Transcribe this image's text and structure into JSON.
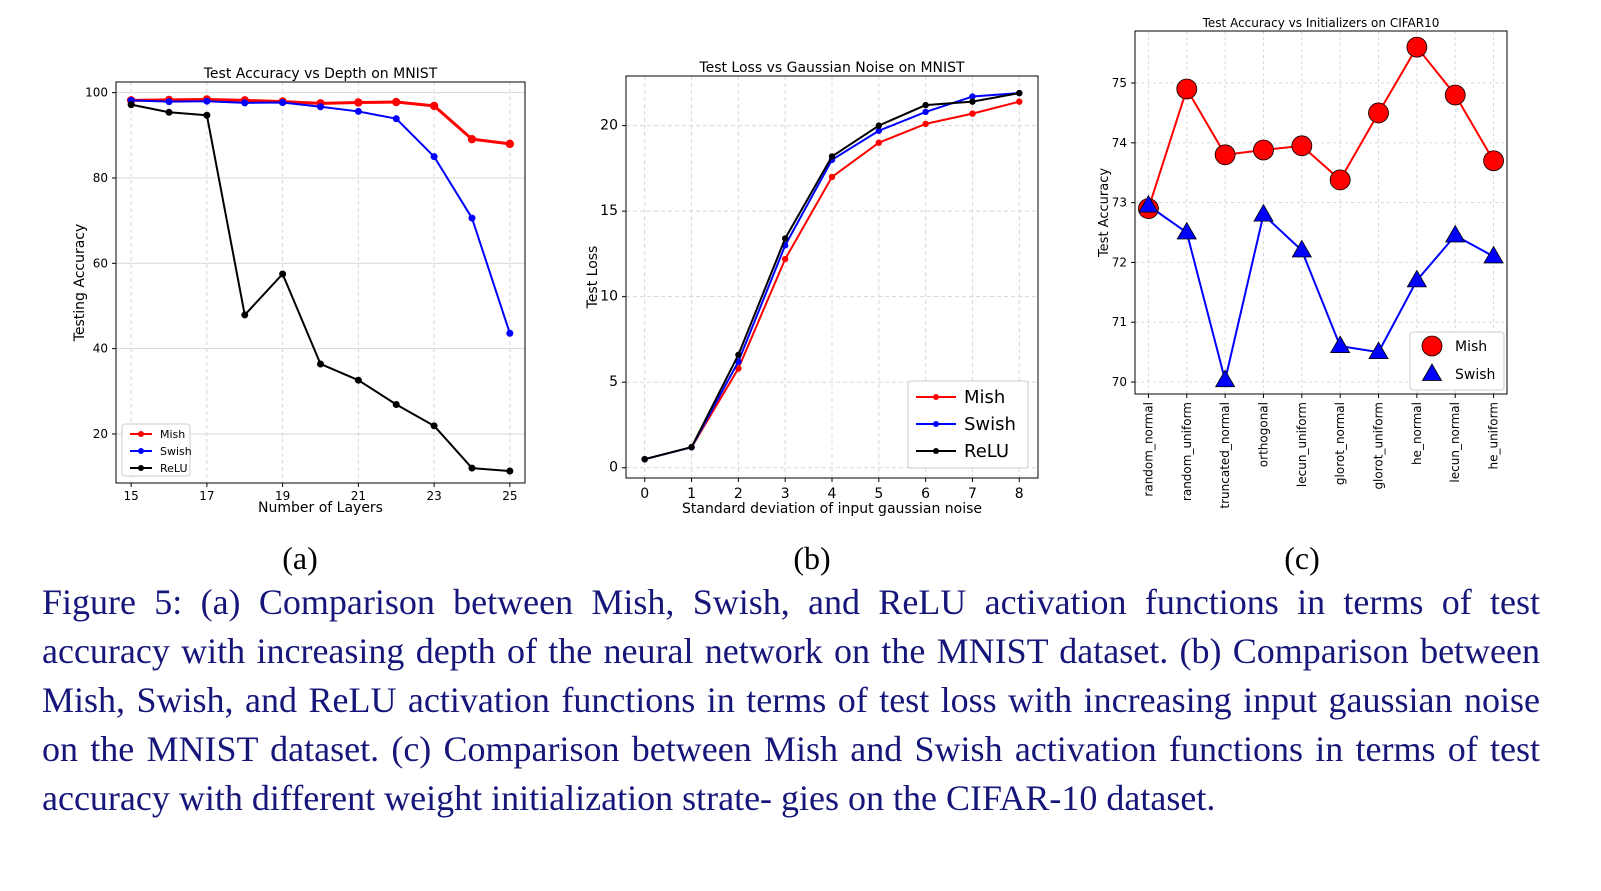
{
  "chart_data": [
    {
      "type": "line",
      "panel": "(a)",
      "title": "Test Accuracy vs Depth on MNIST",
      "xlabel": "Number of Layers",
      "ylabel": "Testing Accuracy",
      "xlim": [
        14.6,
        25.4
      ],
      "ylim": [
        8.5,
        102.5
      ],
      "xticks": [
        15,
        17,
        19,
        21,
        23,
        25
      ],
      "yticks": [
        20,
        40,
        60,
        80,
        100
      ],
      "grid": true,
      "legend_position": "lower-left",
      "x": [
        15,
        16,
        17,
        18,
        19,
        20,
        21,
        22,
        23,
        24,
        25
      ],
      "series": [
        {
          "name": "Mish",
          "color": "#ff0000",
          "values": [
            98.2,
            98.3,
            98.4,
            98.2,
            97.9,
            97.5,
            97.7,
            97.8,
            96.9,
            89.1,
            88.0
          ]
        },
        {
          "name": "Swish",
          "color": "#0000ff",
          "values": [
            98.2,
            97.9,
            98.0,
            97.6,
            97.7,
            96.7,
            95.6,
            93.9,
            85.0,
            70.6,
            43.6
          ]
        },
        {
          "name": "ReLU",
          "color": "#000000",
          "values": [
            97.2,
            95.4,
            94.7,
            47.9,
            57.5,
            36.4,
            32.6,
            26.9,
            21.9,
            12.0,
            11.3
          ]
        }
      ]
    },
    {
      "type": "line",
      "panel": "(b)",
      "title": "Test Loss vs Gaussian Noise on MNIST",
      "xlabel": "Standard deviation of input gaussian noise",
      "ylabel": "Test Loss",
      "xlim": [
        -0.4,
        8.4
      ],
      "ylim": [
        -0.6,
        22.9
      ],
      "xticks": [
        0,
        1,
        2,
        3,
        4,
        5,
        6,
        7,
        8
      ],
      "yticks": [
        0,
        5,
        10,
        15,
        20
      ],
      "grid": true,
      "legend_position": "lower-right",
      "x": [
        0,
        1,
        2,
        3,
        4,
        5,
        6,
        7,
        8
      ],
      "series": [
        {
          "name": "Mish",
          "color": "#ff0000",
          "values": [
            0.5,
            1.2,
            5.8,
            12.2,
            17.0,
            19.0,
            20.1,
            20.7,
            21.4
          ]
        },
        {
          "name": "Swish",
          "color": "#0000ff",
          "values": [
            0.5,
            1.2,
            6.2,
            13.0,
            18.0,
            19.7,
            20.8,
            21.7,
            21.9
          ]
        },
        {
          "name": "ReLU",
          "color": "#000000",
          "values": [
            0.5,
            1.2,
            6.6,
            13.4,
            18.2,
            20.0,
            21.2,
            21.4,
            21.9
          ]
        }
      ]
    },
    {
      "type": "line",
      "panel": "(c)",
      "title": "Test Accuracy vs Initializers on CIFAR10",
      "xlabel": "",
      "ylabel": "Test Accuracy",
      "ylim": [
        69.8,
        75.87
      ],
      "yticks": [
        70,
        71,
        72,
        73,
        74,
        75
      ],
      "grid": true,
      "legend_position": "lower-right",
      "categories": [
        "random_normal",
        "random_uniform",
        "truncated_normal",
        "orthogonal",
        "lecun_uniform",
        "glorot_normal",
        "glorot_uniform",
        "he_normal",
        "lecun_normal",
        "he_uniform"
      ],
      "series": [
        {
          "name": "Mish",
          "color": "#ff0000",
          "marker": "circle",
          "values": [
            72.9,
            74.9,
            73.8,
            73.88,
            73.95,
            73.38,
            74.5,
            75.6,
            74.8,
            73.7
          ]
        },
        {
          "name": "Swish",
          "color": "#0000ff",
          "marker": "triangle",
          "values": [
            72.95,
            72.5,
            70.03,
            72.8,
            72.2,
            70.6,
            70.5,
            71.7,
            72.45,
            72.1
          ]
        }
      ]
    }
  ],
  "subfigure_labels": [
    "(a)",
    "(b)",
    "(c)"
  ],
  "caption_lines": [
    "Figure 5: (a) Comparison between Mish, Swish, and ReLU activation functions in terms",
    "of test accuracy with increasing depth of the neural network on the MNIST dataset.  (b)",
    "Comparison between Mish, Swish, and ReLU activation functions in terms of test loss with",
    "increasing input gaussian noise on the MNIST dataset.  (c) Comparison between Mish and",
    "Swish activation functions in terms of test accuracy with different weight initialization strate-",
    "gies on the CIFAR-10 dataset."
  ]
}
